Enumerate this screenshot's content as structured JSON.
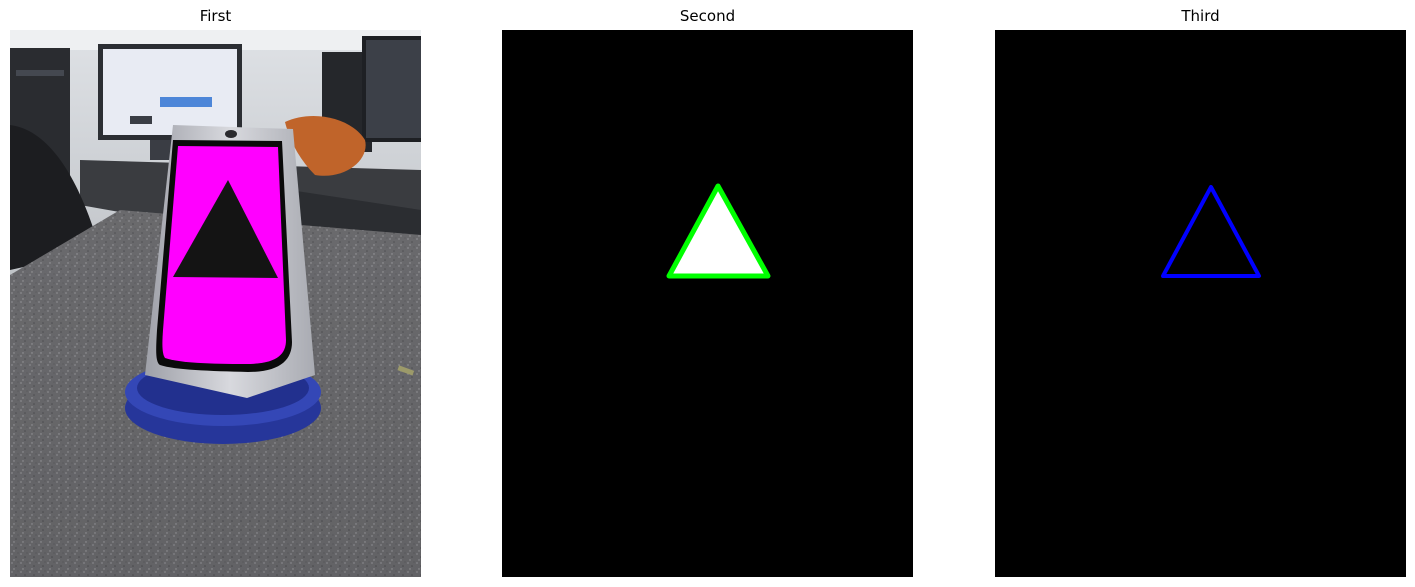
{
  "figure": {
    "panels": [
      {
        "title": "First"
      },
      {
        "title": "Second"
      },
      {
        "title": "Third"
      }
    ]
  },
  "colors": {
    "background": "#ffffff",
    "panel_black": "#000000",
    "magenta_sign": "#ff00ff",
    "green_outline": "#00ff00",
    "blue_outline": "#0000ff",
    "white_fill": "#ffffff",
    "base_blue": "#2f3fa8"
  },
  "icons": {
    "first": "photo-of-cone-with-magenta-triangle-sign",
    "second": "white-triangle-with-green-outline",
    "third": "blue-triangle-outline"
  }
}
